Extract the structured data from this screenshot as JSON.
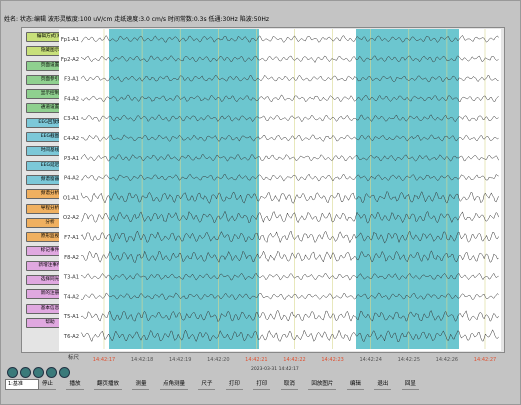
{
  "header": {
    "status": "姓名: 状态:编辑 波形灵敏度:100 uV/cm 走纸速度:3.0 cm/s 时间常数:0.3s 低通:30Hz 陷波:50Hz"
  },
  "sidebar": {
    "buttons": [
      {
        "text": "编辑方式[易]",
        "color": "#c8e07a"
      },
      {
        "text": "隐藏图示",
        "color": "#c8e07a"
      },
      {
        "text": "页面设置",
        "color": "#8fd08f"
      },
      {
        "text": "页面参引",
        "color": "#8fd08f"
      },
      {
        "text": "显示控制",
        "color": "#8fd08f"
      },
      {
        "text": "通道设置",
        "color": "#8fd08f"
      },
      {
        "text": "EEG回放数",
        "color": "#7cc8d8"
      },
      {
        "text": "EEG截图",
        "color": "#7cc8d8"
      },
      {
        "text": "时间基线",
        "color": "#7cc8d8"
      },
      {
        "text": "EEG延迟",
        "color": "#7cc8d8"
      },
      {
        "text": "频谱窗器",
        "color": "#7cc8d8"
      },
      {
        "text": "频谱分析",
        "color": "#f0b060"
      },
      {
        "text": "导程分析",
        "color": "#f0b060"
      },
      {
        "text": "分析",
        "color": "#f0b060"
      },
      {
        "text": "原形监视",
        "color": "#f0b060"
      },
      {
        "text": "标记事件",
        "color": "#e0a8e0"
      },
      {
        "text": "新增注事件",
        "color": "#e0a8e0"
      },
      {
        "text": "选择同光",
        "color": "#e0a8e0"
      },
      {
        "text": "新的注册",
        "color": "#e0a8e0"
      },
      {
        "text": "基本信息",
        "color": "#e0a8e0"
      },
      {
        "text": "帮助",
        "color": "#e0a8e0"
      }
    ]
  },
  "channels": [
    "Fp1-A1",
    "Fp2-A2",
    "F3-A1",
    "F4-A2",
    "C3-A1",
    "C4-A2",
    "P3-A1",
    "P4-A2",
    "O1-A1",
    "O2-A2",
    "F7-A1",
    "F8-A2",
    "T3-A1",
    "T4-A2",
    "T5-A1",
    "T6-A2"
  ],
  "scale_label": "标尺",
  "time_labels": [
    {
      "text": "14:42:17",
      "color": "#e05030"
    },
    {
      "text": "14:42:18",
      "color": "#555"
    },
    {
      "text": "14:42:19",
      "color": "#555"
    },
    {
      "text": "14:42:20",
      "color": "#555"
    },
    {
      "text": "14:42:21",
      "color": "#e05030"
    },
    {
      "text": "14:42:22",
      "color": "#e05030"
    },
    {
      "text": "14:42:23",
      "color": "#e05030"
    },
    {
      "text": "14:42:24",
      "color": "#555"
    },
    {
      "text": "14:42:25",
      "color": "#555"
    },
    {
      "text": "14:42:26",
      "color": "#555"
    },
    {
      "text": "14:42:27",
      "color": "#e05030"
    }
  ],
  "footer": {
    "timestamp": "2023-03-31 14:42:17",
    "select": "1:基准",
    "buttons": [
      "停止",
      "播放",
      "翻页播放",
      "测量",
      "点角测量",
      "尺子",
      "打印",
      "打印",
      "取消",
      "回放图片",
      "编辑",
      "退出",
      "回显"
    ]
  }
}
